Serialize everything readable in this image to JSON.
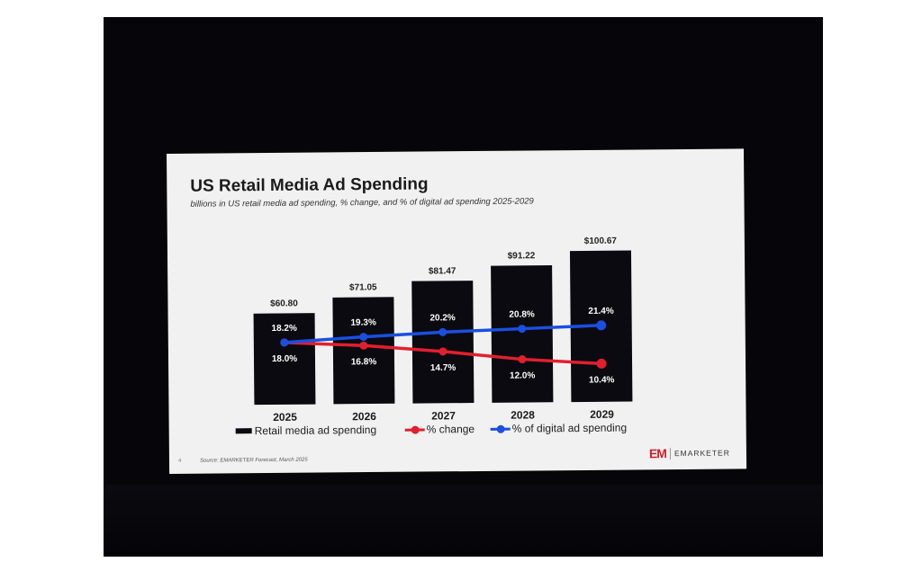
{
  "slide": {
    "title": "US Retail Media Ad Spending",
    "subtitle": "billions in US retail media ad spending, % change, and % of digital ad spending 2025-2029",
    "source": "Source: EMARKETER Forecast, March 2025",
    "page_number": "4",
    "logo_mark": "EM",
    "logo_text": "EMARKETER"
  },
  "colors": {
    "bar": "#0b0a10",
    "change": "#e0202e",
    "digital": "#1a4fe0"
  },
  "chart_data": {
    "type": "bar",
    "title": "US Retail Media Ad Spending",
    "categories": [
      "2025",
      "2026",
      "2027",
      "2028",
      "2029"
    ],
    "series": [
      {
        "name": "Retail media ad spending",
        "kind": "bar",
        "values": [
          60.8,
          71.05,
          81.47,
          91.22,
          100.67
        ],
        "labels": [
          "$60.80",
          "$71.05",
          "$81.47",
          "$91.22",
          "$100.67"
        ]
      },
      {
        "name": "% change",
        "kind": "line",
        "values": [
          18.0,
          16.8,
          14.7,
          12.0,
          10.4
        ],
        "labels": [
          "18.0%",
          "16.8%",
          "14.7%",
          "12.0%",
          "10.4%"
        ]
      },
      {
        "name": "% of digital ad spending",
        "kind": "line",
        "values": [
          18.2,
          19.3,
          20.2,
          20.8,
          21.4
        ],
        "labels": [
          "18.2%",
          "19.3%",
          "20.2%",
          "20.8%",
          "21.4%"
        ]
      }
    ],
    "ylim": [
      0,
      100.67
    ],
    "legend": "bottom"
  }
}
